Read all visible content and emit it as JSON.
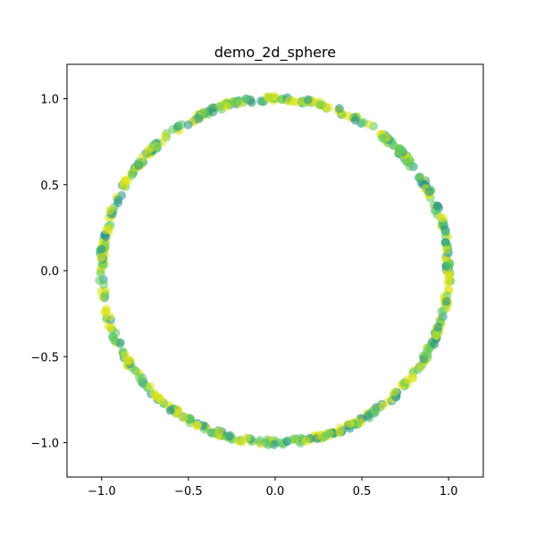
{
  "chart_data": {
    "type": "scatter",
    "title": "demo_2d_sphere",
    "xlabel": "",
    "ylabel": "",
    "xlim": [
      -1.2,
      1.2
    ],
    "ylim": [
      -1.2,
      1.2
    ],
    "xticks": [
      -1.0,
      -0.5,
      0.0,
      0.5,
      1.0
    ],
    "yticks": [
      -1.0,
      -0.5,
      0.0,
      0.5,
      1.0
    ],
    "xtick_labels": [
      "−1.0",
      "−0.5",
      "0.0",
      "0.5",
      "1.0"
    ],
    "ytick_labels": [
      "−1.0",
      "−0.5",
      "0.0",
      "0.5",
      "1.0"
    ],
    "grid": false,
    "colormap": "viridis",
    "colors": {
      "teal": "#21918c",
      "green": "#5ec962",
      "yellow": "#dde318",
      "frame": "#000000"
    },
    "point_count": 600,
    "series": [
      {
        "shape": "circle",
        "center": [
          0,
          0
        ],
        "radius": 1.0,
        "radius_jitter": 0.015,
        "points": [
          {
            "angle_deg": 0,
            "r": 1.0
          }
        ]
      }
    ]
  }
}
